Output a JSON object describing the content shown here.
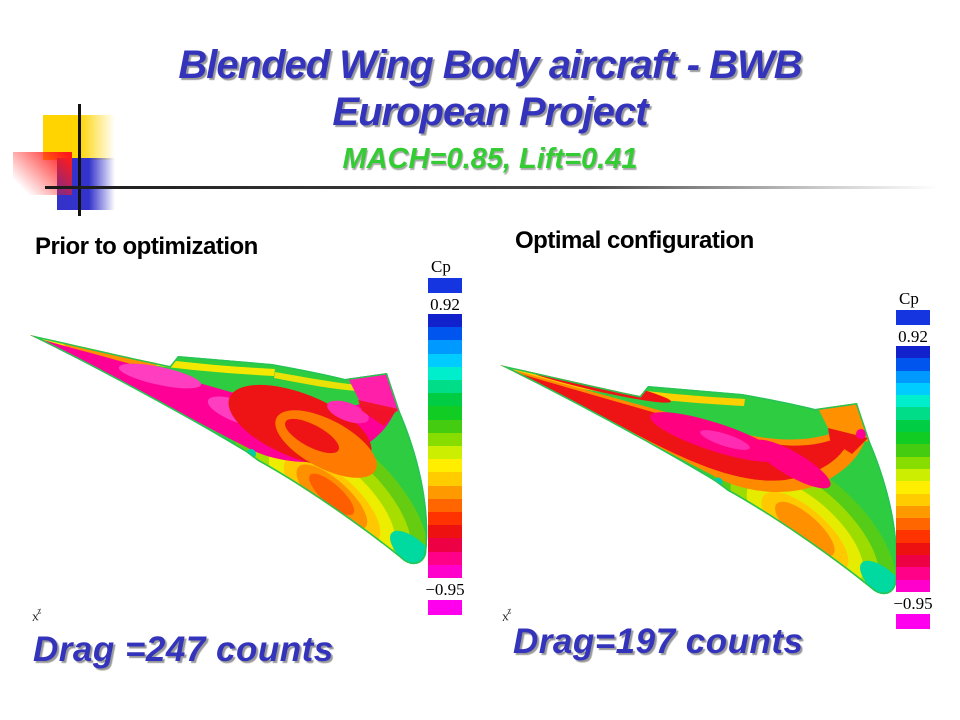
{
  "slide": {
    "title_line1": "Blended Wing Body aircraft - BWB",
    "title_line2": "European Project",
    "subtitle": "MACH=0.85, Lift=0.41"
  },
  "colors": {
    "title": "#3333bb",
    "subtitle": "#33cc33",
    "drag": "#3333bb"
  },
  "panels": {
    "left": {
      "heading": "Prior to optimization",
      "drag_text": "Drag =247 counts"
    },
    "right": {
      "heading": "Optimal configuration",
      "drag_text": "Drag=197 counts"
    }
  },
  "axis_marker": {
    "x_label": "x",
    "z_label": "z"
  },
  "colorbar": {
    "label": "Cp",
    "max_label": "0.92",
    "min_label": "−0.95",
    "over_color": "#1535e0",
    "under_color": "#ff00ee",
    "segments": [
      "#1122cc",
      "#0055ee",
      "#0099ff",
      "#00ccff",
      "#00eecc",
      "#00dd88",
      "#00cc44",
      "#11cc22",
      "#44cc11",
      "#88dd00",
      "#ccee00",
      "#ffee00",
      "#ffcc00",
      "#ff9900",
      "#ff6600",
      "#ff3300",
      "#ee1111",
      "#ee0044",
      "#ff0088",
      "#ff00cc"
    ]
  }
}
